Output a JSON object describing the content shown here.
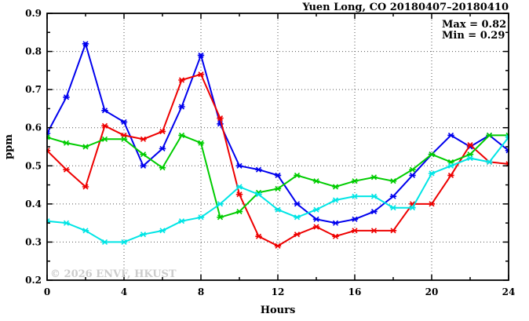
{
  "chart_data": {
    "type": "line",
    "title": "Yuen Long, CO 20180407–20180410",
    "annotations": [
      "Max = 0.82",
      "Min = 0.29"
    ],
    "annotation_position": "top-right",
    "xlabel": "Hours",
    "ylabel": "ppm",
    "watermark": "© 2026 ENVF, HKUST",
    "xlim": [
      0,
      24
    ],
    "ylim": [
      0.2,
      0.9
    ],
    "grid": "dotted-at-major-ticks",
    "legend_position": "none",
    "x_ticks": [
      {
        "value": 0,
        "label": "0"
      },
      {
        "value": 4,
        "label": "4"
      },
      {
        "value": 8,
        "label": "8"
      },
      {
        "value": 12,
        "label": "12"
      },
      {
        "value": 16,
        "label": "16"
      },
      {
        "value": 20,
        "label": "20"
      },
      {
        "value": 24,
        "label": "24"
      }
    ],
    "x_minor_ticks": [
      2,
      6,
      10,
      14,
      18,
      22
    ],
    "y_ticks": [
      {
        "value": 0.2,
        "label": "0.2"
      },
      {
        "value": 0.3,
        "label": "0.3"
      },
      {
        "value": 0.4,
        "label": "0.4"
      },
      {
        "value": 0.5,
        "label": "0.5"
      },
      {
        "value": 0.6,
        "label": "0.6"
      },
      {
        "value": 0.7,
        "label": "0.7"
      },
      {
        "value": 0.8,
        "label": "0.8"
      },
      {
        "value": 0.9,
        "label": "0.9"
      }
    ],
    "y_minor_ticks": [
      0.25,
      0.35,
      0.45,
      0.55,
      0.65,
      0.75,
      0.85
    ],
    "x": [
      0,
      1,
      2,
      3,
      4,
      5,
      6,
      7,
      8,
      9,
      10,
      11,
      12,
      13,
      14,
      15,
      16,
      17,
      18,
      19,
      20,
      21,
      22,
      23,
      24
    ],
    "series": [
      {
        "name": "blue",
        "color": "#0000ee",
        "values": [
          0.585,
          0.68,
          0.82,
          0.645,
          0.615,
          0.5,
          0.545,
          0.655,
          0.79,
          0.61,
          0.5,
          0.49,
          0.475,
          0.4,
          0.36,
          0.35,
          0.36,
          0.38,
          0.42,
          0.475,
          0.53,
          0.58,
          0.55,
          0.58,
          0.54
        ]
      },
      {
        "name": "red",
        "color": "#ee0000",
        "values": [
          0.54,
          0.49,
          0.445,
          0.605,
          0.58,
          0.57,
          0.59,
          0.725,
          0.74,
          0.625,
          0.425,
          0.315,
          0.29,
          0.32,
          0.34,
          0.315,
          0.33,
          0.33,
          0.33,
          0.4,
          0.4,
          0.475,
          0.555,
          0.51,
          0.505
        ]
      },
      {
        "name": "green",
        "color": "#00cc00",
        "values": [
          0.575,
          0.56,
          0.55,
          0.57,
          0.57,
          0.53,
          0.495,
          0.58,
          0.56,
          0.365,
          0.38,
          0.43,
          0.44,
          0.475,
          0.46,
          0.445,
          0.46,
          0.47,
          0.46,
          0.49,
          0.53,
          0.51,
          0.53,
          0.58,
          0.58
        ]
      },
      {
        "name": "cyan",
        "color": "#00e5e5",
        "values": [
          0.355,
          0.35,
          0.33,
          0.3,
          0.3,
          0.32,
          0.33,
          0.355,
          0.365,
          0.4,
          0.445,
          0.425,
          0.385,
          0.365,
          0.385,
          0.41,
          0.42,
          0.42,
          0.39,
          0.39,
          0.48,
          0.5,
          0.52,
          0.51,
          0.575
        ]
      }
    ]
  }
}
